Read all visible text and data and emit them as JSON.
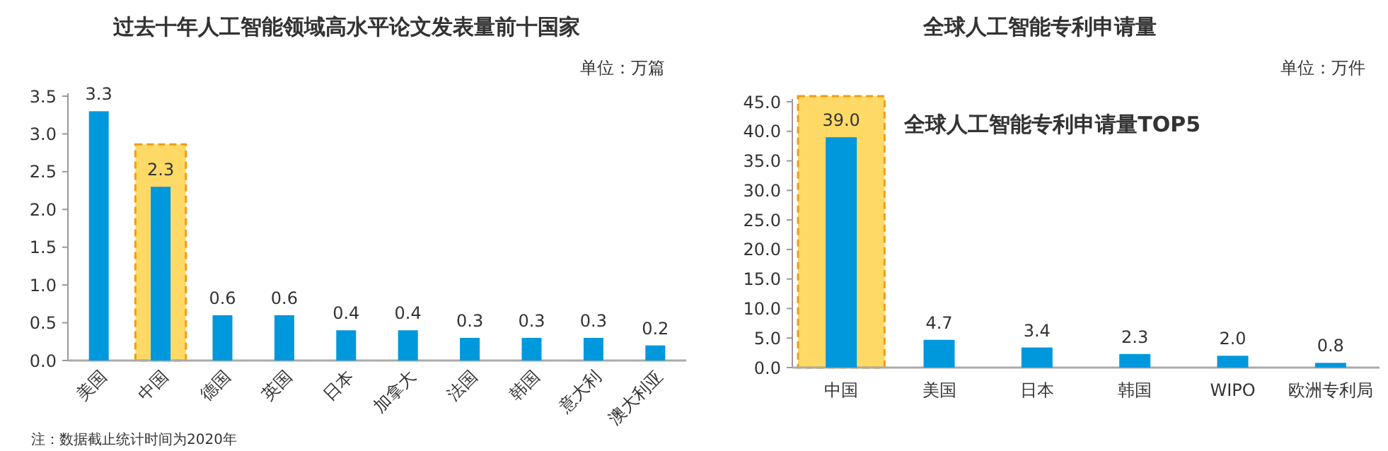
{
  "chart_data": [
    {
      "type": "bar",
      "title": "过去十年人工智能领域高水平论文发表量前十国家",
      "subtitle": "单位：万篇",
      "categories": [
        "美国",
        "中国",
        "德国",
        "英国",
        "日本",
        "加拿大",
        "法国",
        "韩国",
        "意大利",
        "澳大利亚"
      ],
      "values": [
        3.3,
        2.3,
        0.6,
        0.6,
        0.4,
        0.4,
        0.3,
        0.3,
        0.3,
        0.2
      ],
      "value_labels": [
        "3.3",
        "2.3",
        "0.6",
        "0.6",
        "0.4",
        "0.4",
        "0.3",
        "0.3",
        "0.3",
        "0.2"
      ],
      "color": "#0098dc",
      "ylim": [
        0,
        3.5
      ],
      "yticks": [
        {
          "value": 0,
          "label": "0.0"
        },
        0.5,
        {
          "value": 1,
          "label": "1.0"
        },
        1.5,
        {
          "value": 2,
          "label": "2.0"
        },
        2.5,
        {
          "value": 3,
          "label": "3.0"
        },
        3.5
      ],
      "bands": [
        {
          "axis": "x",
          "from": "中国",
          "to": "中国",
          "color": "#ffd966"
        }
      ],
      "annotations": [
        "注：数据截止统计时间为2020年"
      ]
    },
    {
      "type": "bar",
      "title": "全球人工智能专利申请量",
      "subtitle": "单位：万件",
      "categories": [
        "中国",
        "美国",
        "日本",
        "韩国",
        "WIPO",
        "欧洲专利局"
      ],
      "values": [
        39.0,
        4.7,
        3.4,
        2.3,
        2.0,
        0.8
      ],
      "value_labels": [
        "39.0",
        "4.7",
        "3.4",
        "2.3",
        "2.0",
        "0.8"
      ],
      "color": "#0098dc",
      "ylim": [
        0,
        45
      ],
      "yticks": [
        {
          "value": 0,
          "label": "0.0"
        },
        {
          "value": 5,
          "label": "5.0"
        },
        {
          "value": 10,
          "label": "10.0"
        },
        {
          "value": 15,
          "label": "15.0"
        },
        {
          "value": 20,
          "label": "20.0"
        },
        {
          "value": 25,
          "label": "25.0"
        },
        {
          "value": 30,
          "label": "30.0"
        },
        {
          "value": 35,
          "label": "35.0"
        },
        {
          "value": 40,
          "label": "40.0"
        },
        {
          "value": 45,
          "label": "45.0"
        }
      ],
      "bands": [
        {
          "axis": "x",
          "from": "中国",
          "to": "中国",
          "color": "#ffd966"
        }
      ],
      "annotations": [
        "全球人工智能专利申请量TOP5"
      ]
    }
  ]
}
